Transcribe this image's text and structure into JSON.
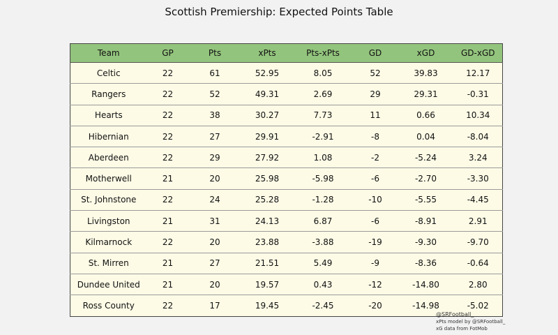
{
  "title": "Scottish Premiership: Expected Points Table",
  "chart_data": {
    "type": "table",
    "columns": [
      "Team",
      "GP",
      "Pts",
      "xPts",
      "Pts-xPts",
      "GD",
      "xGD",
      "GD-xGD"
    ],
    "rows": [
      [
        "Celtic",
        "22",
        "61",
        "52.95",
        "8.05",
        "52",
        "39.83",
        "12.17"
      ],
      [
        "Rangers",
        "22",
        "52",
        "49.31",
        "2.69",
        "29",
        "29.31",
        "-0.31"
      ],
      [
        "Hearts",
        "22",
        "38",
        "30.27",
        "7.73",
        "11",
        "0.66",
        "10.34"
      ],
      [
        "Hibernian",
        "22",
        "27",
        "29.91",
        "-2.91",
        "-8",
        "0.04",
        "-8.04"
      ],
      [
        "Aberdeen",
        "22",
        "29",
        "27.92",
        "1.08",
        "-2",
        "-5.24",
        "3.24"
      ],
      [
        "Motherwell",
        "21",
        "20",
        "25.98",
        "-5.98",
        "-6",
        "-2.70",
        "-3.30"
      ],
      [
        "St. Johnstone",
        "22",
        "24",
        "25.28",
        "-1.28",
        "-10",
        "-5.55",
        "-4.45"
      ],
      [
        "Livingston",
        "21",
        "31",
        "24.13",
        "6.87",
        "-6",
        "-8.91",
        "2.91"
      ],
      [
        "Kilmarnock",
        "22",
        "20",
        "23.88",
        "-3.88",
        "-19",
        "-9.30",
        "-9.70"
      ],
      [
        "St. Mirren",
        "21",
        "27",
        "21.51",
        "5.49",
        "-9",
        "-8.36",
        "-0.64"
      ],
      [
        "Dundee United",
        "21",
        "20",
        "19.57",
        "0.43",
        "-12",
        "-14.80",
        "2.80"
      ],
      [
        "Ross County",
        "22",
        "17",
        "19.45",
        "-2.45",
        "-20",
        "-14.98",
        "-5.02"
      ]
    ]
  },
  "credits": {
    "handle": "@SRFootball_",
    "model": "xPts model by @SRFootball_",
    "source": "xG data from FotMob"
  },
  "colors": {
    "header_bg": "#93c47d",
    "row_bg": "#fdfbe6",
    "page_bg": "#f2f2f2"
  }
}
